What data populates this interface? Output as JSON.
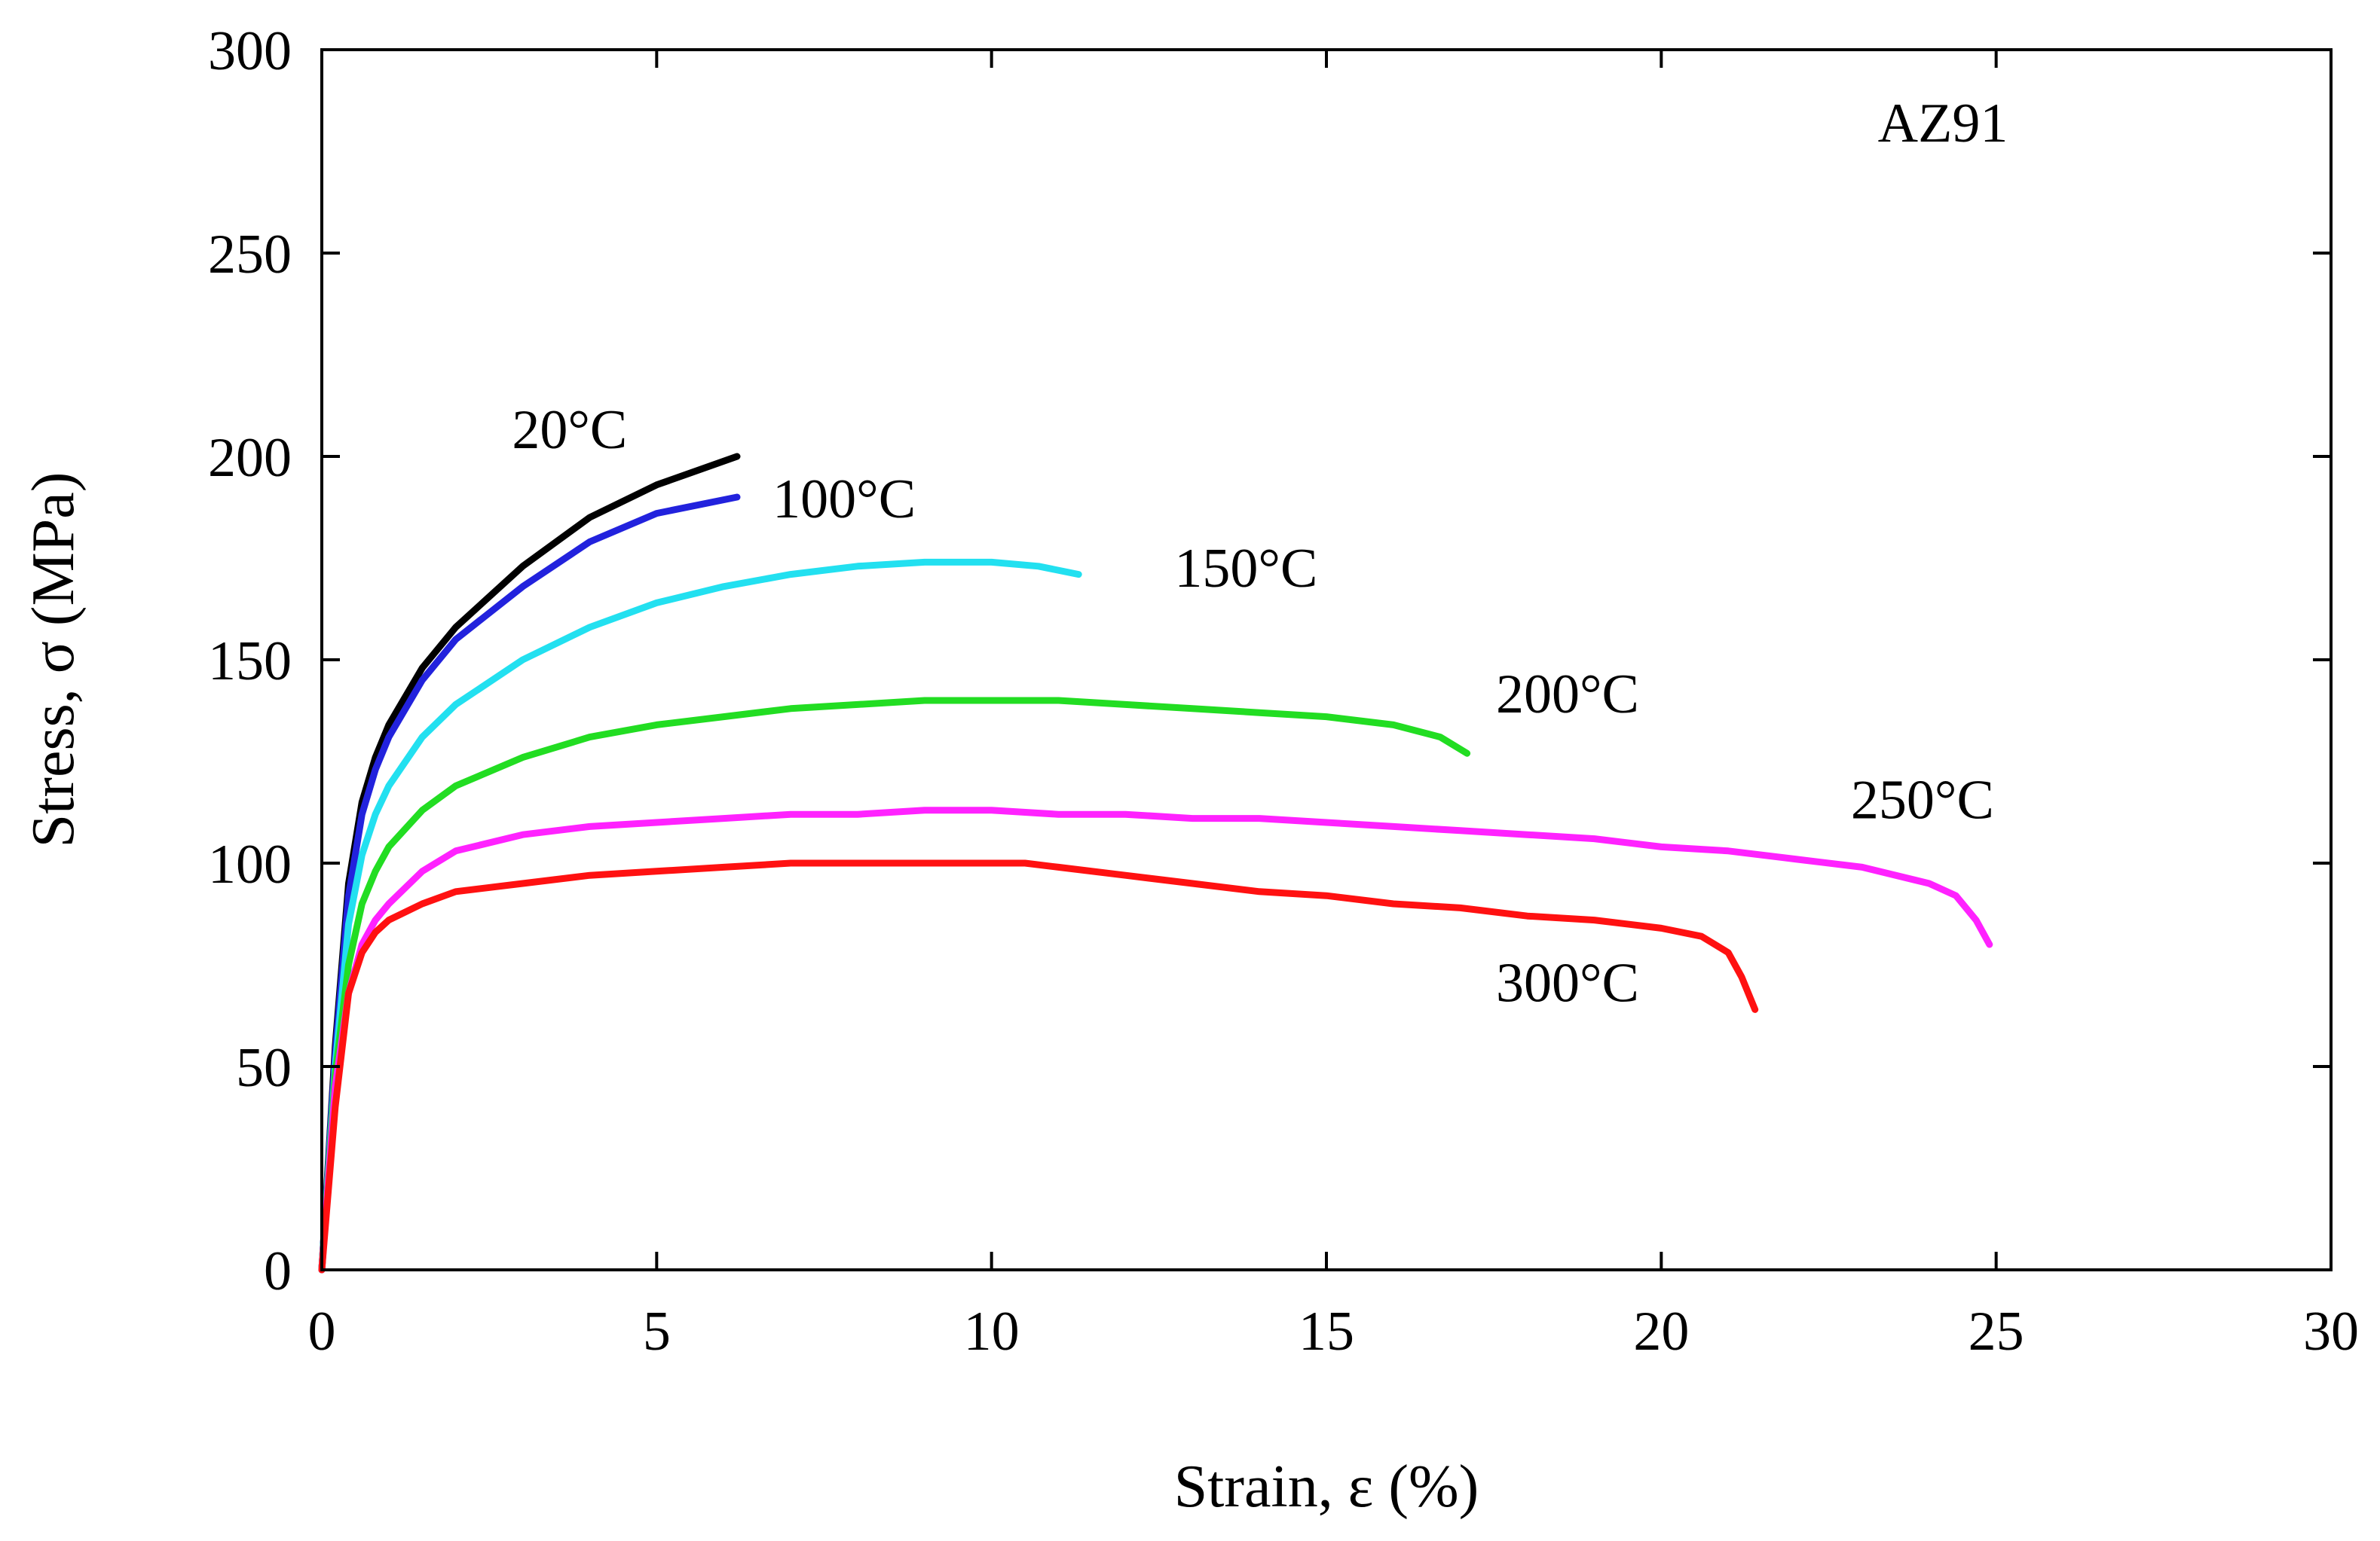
{
  "chart_data": {
    "type": "line",
    "title": "",
    "annotation": "AZ91",
    "xlabel": "Strain, ε (%)",
    "ylabel": "Stress, σ (MPa)",
    "xlim": [
      0,
      30
    ],
    "ylim": [
      0,
      300
    ],
    "x_ticks": [
      0,
      5,
      10,
      15,
      20,
      25,
      30
    ],
    "y_ticks": [
      0,
      50,
      100,
      150,
      200,
      250,
      300
    ],
    "x_tick_labels": [
      "0",
      "5",
      "10",
      "15",
      "20",
      "25",
      "30"
    ],
    "y_tick_labels": [
      "0",
      "50",
      "100",
      "150",
      "200",
      "250",
      "300"
    ],
    "grid": false,
    "series": [
      {
        "name": "20°C",
        "color": "#000000",
        "x": [
          0,
          0.2,
          0.4,
          0.6,
          0.8,
          1.0,
          1.5,
          2.0,
          3.0,
          4.0,
          5.0,
          6.2
        ],
        "y": [
          0,
          55,
          95,
          115,
          126,
          134,
          148,
          158,
          173,
          185,
          193,
          200
        ]
      },
      {
        "name": "100°C",
        "color": "#2222dd",
        "x": [
          0,
          0.2,
          0.4,
          0.6,
          0.8,
          1.0,
          1.5,
          2.0,
          3.0,
          4.0,
          5.0,
          6.2
        ],
        "y": [
          0,
          53,
          92,
          112,
          123,
          131,
          145,
          155,
          168,
          179,
          186,
          190
        ]
      },
      {
        "name": "150°C",
        "color": "#22e0f0",
        "x": [
          0,
          0.2,
          0.4,
          0.6,
          0.8,
          1.0,
          1.5,
          2.0,
          3.0,
          4.0,
          5.0,
          6.0,
          7.0,
          8.0,
          9.0,
          10.0,
          10.7,
          11.3
        ],
        "y": [
          0,
          50,
          85,
          102,
          112,
          119,
          131,
          139,
          150,
          158,
          164,
          168,
          171,
          173,
          174,
          174,
          173,
          171
        ]
      },
      {
        "name": "200°C",
        "color": "#22dd22",
        "x": [
          0,
          0.2,
          0.4,
          0.6,
          0.8,
          1.0,
          1.5,
          2.0,
          3.0,
          4.0,
          5.0,
          6.0,
          7.0,
          8.0,
          9.0,
          10.0,
          11.0,
          12.0,
          13.0,
          14.0,
          15.0,
          16.0,
          16.7,
          17.1
        ],
        "y": [
          0,
          48,
          75,
          90,
          98,
          104,
          113,
          119,
          126,
          131,
          134,
          136,
          138,
          139,
          140,
          140,
          140,
          139,
          138,
          137,
          136,
          134,
          131,
          127
        ]
      },
      {
        "name": "250°C",
        "color": "#ff22ff",
        "x": [
          0,
          0.2,
          0.4,
          0.6,
          0.8,
          1.0,
          1.5,
          2.0,
          3.0,
          4.0,
          5.0,
          6.0,
          7.0,
          8.0,
          9.0,
          10.0,
          11.0,
          12.0,
          13.0,
          14.0,
          15.0,
          16.0,
          17.0,
          18.0,
          19.0,
          20.0,
          21.0,
          22.0,
          23.0,
          24.0,
          24.4,
          24.7,
          24.9
        ],
        "y": [
          0,
          45,
          68,
          80,
          86,
          90,
          98,
          103,
          107,
          109,
          110,
          111,
          112,
          112,
          113,
          113,
          112,
          112,
          111,
          111,
          110,
          109,
          108,
          107,
          106,
          104,
          103,
          101,
          99,
          95,
          92,
          86,
          80
        ]
      },
      {
        "name": "300°C",
        "color": "#ff1111",
        "x": [
          0,
          0.2,
          0.4,
          0.6,
          0.8,
          1.0,
          1.5,
          2.0,
          3.0,
          4.0,
          5.0,
          6.0,
          7.0,
          8.0,
          9.0,
          10.0,
          10.5,
          11.0,
          12.0,
          13.0,
          14.0,
          15.0,
          16.0,
          17.0,
          18.0,
          19.0,
          20.0,
          20.6,
          21.0,
          21.2,
          21.4
        ],
        "y": [
          0,
          40,
          68,
          78,
          83,
          86,
          90,
          93,
          95,
          97,
          98,
          99,
          100,
          100,
          100,
          100,
          100,
          99,
          97,
          95,
          93,
          92,
          90,
          89,
          87,
          86,
          84,
          82,
          78,
          72,
          64
        ]
      }
    ],
    "series_labels": [
      {
        "text": "20°C",
        "x": 3.7,
        "y": 202
      },
      {
        "text": "100°C",
        "x": 7.8,
        "y": 185
      },
      {
        "text": "150°C",
        "x": 13.8,
        "y": 168
      },
      {
        "text": "200°C",
        "x": 18.6,
        "y": 137
      },
      {
        "text": "250°C",
        "x": 23.9,
        "y": 111
      },
      {
        "text": "300°C",
        "x": 18.6,
        "y": 66
      }
    ]
  }
}
